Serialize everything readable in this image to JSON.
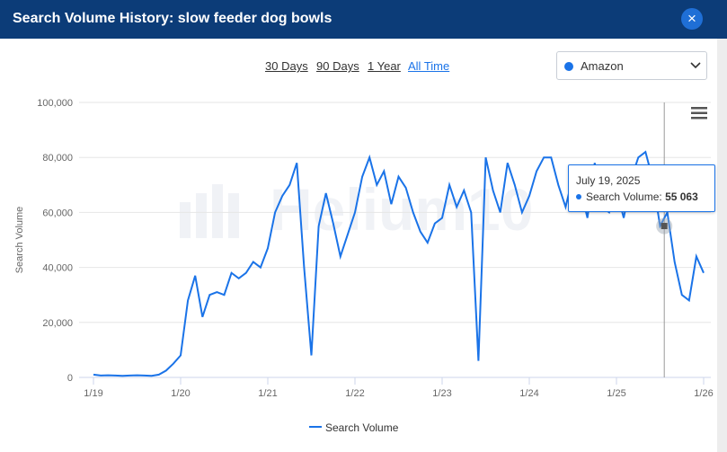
{
  "dialog": {
    "title": "Search Volume History: slow feeder dog bowls",
    "close_symbol": "×"
  },
  "ranges": [
    "30 Days",
    "90 Days",
    "1 Year",
    "All Time"
  ],
  "active_range": "All Time",
  "marketplace_select": {
    "value": "Amazon",
    "dot_color": "#1a73e8"
  },
  "watermark": "Helium10",
  "tooltip": {
    "date": "July 19, 2025",
    "series": "Search Volume:",
    "value": "55 063"
  },
  "legend": {
    "label": "Search Volume"
  },
  "chart_data": {
    "type": "line",
    "xlabel": "",
    "ylabel": "Search Volume",
    "ylim": [
      0,
      100000
    ],
    "yticks": [
      "0",
      "20,000",
      "40,000",
      "60,000",
      "80,000",
      "100,000"
    ],
    "xtick_labels": [
      "1/19",
      "1/20",
      "1/21",
      "1/22",
      "1/23",
      "1/24",
      "1/25",
      "1/26"
    ],
    "grid": true,
    "legend_position": "bottom",
    "series": [
      {
        "name": "Search Volume",
        "color": "#1a73e8",
        "x": [
          "2019-01",
          "2019-02",
          "2019-03",
          "2019-04",
          "2019-05",
          "2019-06",
          "2019-07",
          "2019-08",
          "2019-09",
          "2019-10",
          "2019-11",
          "2019-12",
          "2020-01",
          "2020-02",
          "2020-03",
          "2020-04",
          "2020-05",
          "2020-06",
          "2020-07",
          "2020-08",
          "2020-09",
          "2020-10",
          "2020-11",
          "2020-12",
          "2021-01",
          "2021-02",
          "2021-03",
          "2021-04",
          "2021-05",
          "2021-06",
          "2021-07",
          "2021-08",
          "2021-09",
          "2021-10",
          "2021-11",
          "2021-12",
          "2022-01",
          "2022-02",
          "2022-03",
          "2022-04",
          "2022-05",
          "2022-06",
          "2022-07",
          "2022-08",
          "2022-09",
          "2022-10",
          "2022-11",
          "2022-12",
          "2023-01",
          "2023-02",
          "2023-03",
          "2023-04",
          "2023-05",
          "2023-06",
          "2023-07",
          "2023-08",
          "2023-09",
          "2023-10",
          "2023-11",
          "2023-12",
          "2024-01",
          "2024-02",
          "2024-03",
          "2024-04",
          "2024-05",
          "2024-06",
          "2024-07",
          "2024-08",
          "2024-09",
          "2024-10",
          "2024-11",
          "2024-12",
          "2025-01",
          "2025-02",
          "2025-03",
          "2025-04",
          "2025-05",
          "2025-06",
          "2025-07",
          "2025-08",
          "2025-09",
          "2025-10",
          "2025-11",
          "2025-12",
          "2026-01"
        ],
        "values": [
          1000,
          700,
          800,
          700,
          600,
          700,
          800,
          700,
          600,
          1000,
          2500,
          5000,
          8000,
          28000,
          37000,
          22000,
          30000,
          31000,
          30000,
          38000,
          36000,
          38000,
          42000,
          40000,
          47000,
          60000,
          66000,
          70000,
          78000,
          40000,
          8000,
          55000,
          67000,
          56000,
          44000,
          52000,
          60000,
          73000,
          80000,
          70000,
          75000,
          63000,
          73000,
          69000,
          60000,
          53000,
          49000,
          56000,
          58000,
          70000,
          62000,
          68000,
          60000,
          6000,
          80000,
          68000,
          60000,
          78000,
          70000,
          60000,
          66000,
          75000,
          80000,
          80000,
          70000,
          62000,
          73000,
          69000,
          58000,
          78000,
          62000,
          60000,
          68000,
          58000,
          72000,
          80000,
          82000,
          72000,
          55063,
          60000,
          42000,
          30000,
          28000,
          44000,
          38000
        ]
      }
    ]
  }
}
